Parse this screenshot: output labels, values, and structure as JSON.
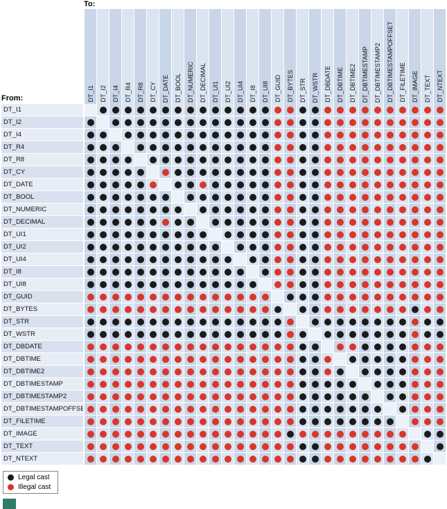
{
  "labels": {
    "to": "To:",
    "from": "From:"
  },
  "legend": {
    "legal": "Legal cast",
    "illegal": "Illegal cast"
  },
  "chart_data": {
    "type": "heatmap",
    "x_axis_label": "To:",
    "y_axis_label": "From:",
    "legend_position": "bottom-left",
    "categories": [
      "DT_I1",
      "DT_I2",
      "DT_I4",
      "DT_R4",
      "DT_R8",
      "DT_CY",
      "DT_DATE",
      "DT_BOOL",
      "DT_NUMERIC",
      "DT_DECIMAL",
      "DT_UI1",
      "DT_UI2",
      "DT_UI4",
      "DT_I8",
      "DT_UI8",
      "DT_GUID",
      "DT_BYTES",
      "DT_STR",
      "DT_WSTR",
      "DT_DBDATE",
      "DT_DBTIME",
      "DT_DBTIME2",
      "DT_DBTIMESTAMP",
      "DT_DBTIMESTAMP2",
      "DT_DBTIMESTAMPOFFSET",
      "DT_FILETIME",
      "DT_IMAGE",
      "DT_TEXT",
      "DT_NTEXT"
    ],
    "cell_encoding": {
      "L": "legal cast (black dot)",
      "X": "illegal cast (red dot)",
      "-": "same type (no dot, diagonal)"
    },
    "rows": [
      "-LLLLLLLLLLLLLLXXLLXXXXXXXXXX",
      "L-LLLLLLLLLLLLLXXLLXXXXXXXXXX",
      "LL-LLLLLLLLLLLLXXLLXXXXXXXXXX",
      "LLL-LLLLLLLLLLLXXLLXXXXXXXXXX",
      "LLLL-LLLLLLLLLLXXLLXXXXXXXXXX",
      "LLLLL-XLLLLLLLLXXLLXXXXXXXXXX",
      "LLLLLX-LLXLLLLLXXLLXXXXXXXXXX",
      "LLLLLLL-LLLLLLLXXLLXXXXXXXXXX",
      "LLLLLLLL-LLLLLLXXLLXXXXXXXXXX",
      "LLLLLLXLL-LLLLLXXLLXXXXXXXXXX",
      "LLLLLLLLLL-LLLLXXLLXXXXXXXXXX",
      "LLLLLLLLLLL-LLLXXLLXXXXXXXXXX",
      "LLLLLLLLLLLL-LLXXLLXXXXXXXXXX",
      "LLLLLLLLLLLLL-LXXLLXXXXXXXXXX",
      "LLLLLLLLLLLLLL-XXLLXXXXXXXXXX",
      "XXXXXXXXXXXXXXX-LLLXXXXXXXXXX",
      "XXXXXXXXXXXXXXXL-LLXXXXXXXLXX",
      "LLLLLLLLLLLLLLLLX-LLLLLLLLXLL",
      "LLLLLLLLLLLLLLLLXL-LLLLLLLXLL",
      "XXXXXXXXXXXXXXXXXLL-XXLLLLXXX",
      "XXXXXXXXXXXXXXXXXLLX-LLLLLXXX",
      "XXXXXXXXXXXXXXXXXLLXL-LLLLXXX",
      "XXXXXXXXXXXXXXXXXLLLLL-LLLXXX",
      "XXXXXXXXXXXXXXXXXLLLLLL-LLXXX",
      "XXXXXXXXXXXXXXXXXLLLLLLL-LXXX",
      "XXXXXXXXXXXXXXXXXLLLLLLLL-XXX",
      "XXXXXXXXXXXXXXXXLXXXXXXXXX-LL",
      "XXXXXXXXXXXXXXXXXLLXXXXXXXX-L",
      "XXXXXXXXXXXXXXXXXLLXXXXXXXXL-"
    ],
    "legend": [
      {
        "label": "Legal cast",
        "color": "#1b1b1b"
      },
      {
        "label": "Illegal cast",
        "color": "#d8372b"
      }
    ],
    "colors": {
      "legal_dot": "#1b1b1b",
      "illegal_dot": "#d8372b",
      "column_stripe_dark": "#c9d6e8",
      "column_stripe_light": "#dbe4f1",
      "row_label_light": "#e8ecf5",
      "row_label_dark": "#d9e1ef",
      "diagonal_cell": "#edf1f8",
      "teal_block": "#2d7d6b"
    }
  }
}
